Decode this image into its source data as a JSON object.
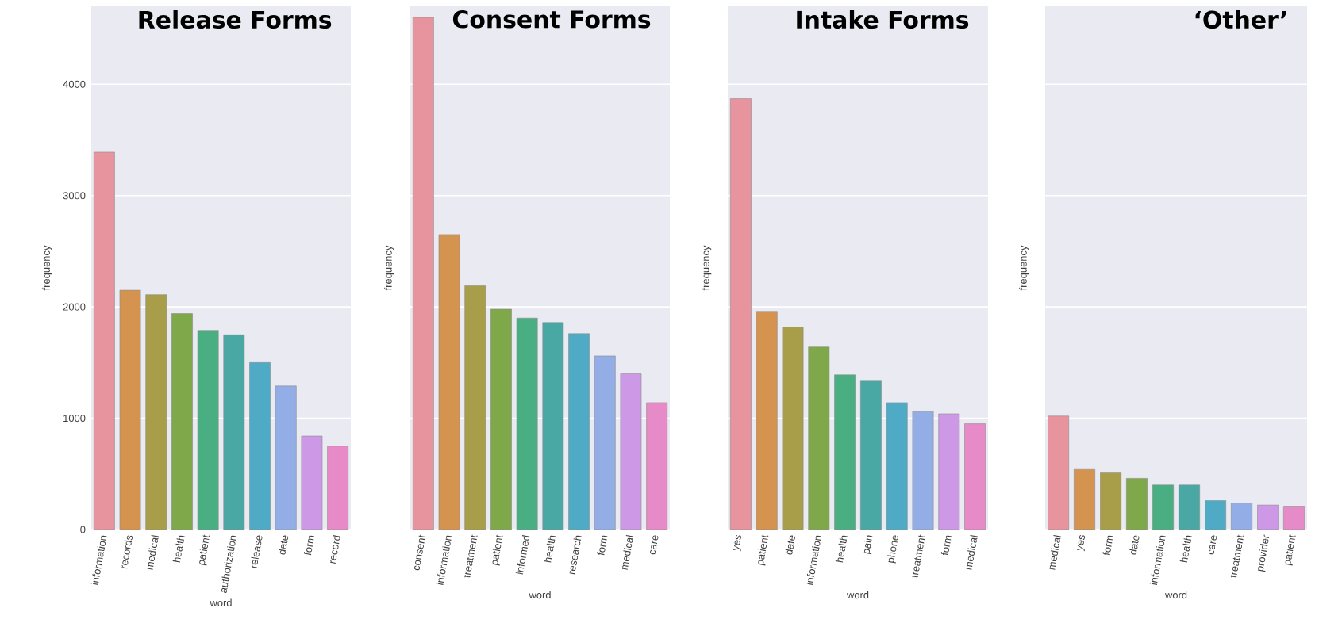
{
  "chart_data": [
    {
      "type": "bar",
      "title": "Release Forms",
      "xlabel": "word",
      "ylabel": "frequency",
      "categories": [
        "information",
        "records",
        "medical",
        "health",
        "patient",
        "authorization",
        "release",
        "date",
        "form",
        "record"
      ],
      "values": [
        3390,
        2150,
        2110,
        1940,
        1790,
        1750,
        1500,
        1290,
        840,
        750
      ],
      "colors": [
        "#e8949e",
        "#d59350",
        "#a89d48",
        "#7fa84a",
        "#4aae83",
        "#4aa8a4",
        "#4fabc5",
        "#93aee6",
        "#cd99e6",
        "#e68bc7"
      ],
      "ylim": [
        0,
        4700
      ],
      "yticks": [
        0,
        1000,
        2000,
        3000,
        4000
      ],
      "grid": "y"
    },
    {
      "type": "bar",
      "title": "Consent Forms",
      "xlabel": "word",
      "ylabel": "frequency",
      "categories": [
        "consent",
        "information",
        "treatment",
        "patient",
        "informed",
        "health",
        "research",
        "form",
        "medical",
        "care"
      ],
      "values": [
        4600,
        2650,
        2190,
        1980,
        1900,
        1860,
        1760,
        1560,
        1400,
        1140
      ],
      "colors": [
        "#e8949e",
        "#d59350",
        "#a89d48",
        "#7fa84a",
        "#4aae83",
        "#4aa8a4",
        "#4fabc5",
        "#93aee6",
        "#cd99e6",
        "#e68bc7"
      ],
      "ylim": [
        0,
        4700
      ],
      "yticks": [
        0,
        1000,
        2000,
        3000,
        4000
      ],
      "grid": "y",
      "tick_labels": "x"
    },
    {
      "type": "bar",
      "title": "Intake Forms",
      "xlabel": "word",
      "ylabel": "frequency",
      "categories": [
        "yes",
        "patient",
        "date",
        "information",
        "health",
        "pain",
        "phone",
        "treatment",
        "form",
        "medical"
      ],
      "values": [
        3870,
        1960,
        1820,
        1640,
        1390,
        1340,
        1140,
        1060,
        1040,
        950
      ],
      "colors": [
        "#e8949e",
        "#d59350",
        "#a89d48",
        "#7fa84a",
        "#4aae83",
        "#4aa8a4",
        "#4fabc5",
        "#93aee6",
        "#cd99e6",
        "#e68bc7"
      ],
      "ylim": [
        0,
        4700
      ],
      "yticks": [
        0,
        1000,
        2000,
        3000,
        4000
      ],
      "grid": "y",
      "tick_labels": "x"
    },
    {
      "type": "bar",
      "title": "‘Other’",
      "xlabel": "word",
      "ylabel": "frequency",
      "categories": [
        "medical",
        "yes",
        "form",
        "date",
        "information",
        "health",
        "care",
        "treatment",
        "provider",
        "patient"
      ],
      "values": [
        1020,
        540,
        510,
        460,
        400,
        400,
        260,
        240,
        220,
        210
      ],
      "colors": [
        "#e8949e",
        "#d59350",
        "#a89d48",
        "#7fa84a",
        "#4aae83",
        "#4aa8a4",
        "#4fabc5",
        "#93aee6",
        "#cd99e6",
        "#e68bc7"
      ],
      "ylim": [
        0,
        4700
      ],
      "yticks": [
        0,
        1000,
        2000,
        3000,
        4000
      ],
      "grid": "y",
      "tick_labels": "x"
    }
  ]
}
